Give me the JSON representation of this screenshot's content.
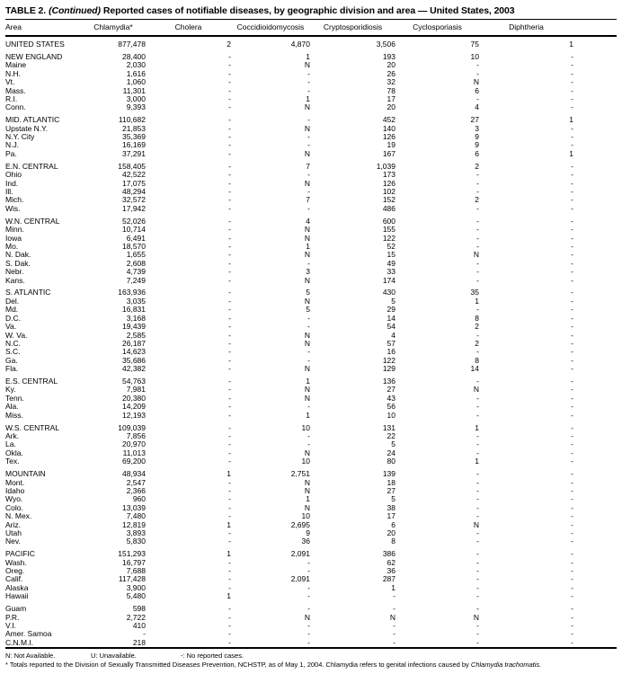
{
  "title": {
    "prefix": "TABLE 2.",
    "continued": "(Continued)",
    "rest": "Reported cases of notifiable diseases, by geographic division and area — United States, 2003"
  },
  "columns": [
    "Area",
    "Chlamydia*",
    "Cholera",
    "Coccidioidomycosis",
    "Cryptosporidiosis",
    "Cyclosporiasis",
    "Diphtheria"
  ],
  "sections": [
    {
      "name": "united-states",
      "rows": [
        {
          "area": "UNITED STATES",
          "values": [
            "877,478",
            "2",
            "4,870",
            "3,506",
            "75",
            "1"
          ]
        }
      ]
    },
    {
      "name": "new-england",
      "rows": [
        {
          "area": "NEW ENGLAND",
          "values": [
            "28,400",
            "-",
            "1",
            "193",
            "10",
            "-"
          ]
        },
        {
          "area": "Maine",
          "values": [
            "2,030",
            "-",
            "N",
            "20",
            "-",
            "-"
          ]
        },
        {
          "area": "N.H.",
          "values": [
            "1,616",
            "-",
            "-",
            "26",
            "-",
            "-"
          ]
        },
        {
          "area": "Vt.",
          "values": [
            "1,060",
            "-",
            "-",
            "32",
            "N",
            "-"
          ]
        },
        {
          "area": "Mass.",
          "values": [
            "11,301",
            "-",
            "-",
            "78",
            "6",
            "-"
          ]
        },
        {
          "area": "R.I.",
          "values": [
            "3,000",
            "-",
            "1",
            "17",
            "-",
            "-"
          ]
        },
        {
          "area": "Conn.",
          "values": [
            "9,393",
            "-",
            "N",
            "20",
            "4",
            "-"
          ]
        }
      ]
    },
    {
      "name": "mid-atlantic",
      "rows": [
        {
          "area": "MID. ATLANTIC",
          "values": [
            "110,682",
            "-",
            "-",
            "452",
            "27",
            "1"
          ]
        },
        {
          "area": "Upstate N.Y.",
          "values": [
            "21,853",
            "-",
            "N",
            "140",
            "3",
            "-"
          ]
        },
        {
          "area": "N.Y. City",
          "values": [
            "35,369",
            "-",
            "-",
            "126",
            "9",
            "-"
          ]
        },
        {
          "area": "N.J.",
          "values": [
            "16,169",
            "-",
            "-",
            "19",
            "9",
            "-"
          ]
        },
        {
          "area": "Pa.",
          "values": [
            "37,291",
            "-",
            "N",
            "167",
            "6",
            "1"
          ]
        }
      ]
    },
    {
      "name": "en-central",
      "rows": [
        {
          "area": "E.N. CENTRAL",
          "values": [
            "158,405",
            "-",
            "7",
            "1,039",
            "2",
            "-"
          ]
        },
        {
          "area": "Ohio",
          "values": [
            "42,522",
            "-",
            "-",
            "173",
            "-",
            "-"
          ]
        },
        {
          "area": "Ind.",
          "values": [
            "17,075",
            "-",
            "N",
            "126",
            "-",
            "-"
          ]
        },
        {
          "area": "Ill.",
          "values": [
            "48,294",
            "-",
            "-",
            "102",
            "-",
            "-"
          ]
        },
        {
          "area": "Mich.",
          "values": [
            "32,572",
            "-",
            "7",
            "152",
            "2",
            "-"
          ]
        },
        {
          "area": "Wis.",
          "values": [
            "17,942",
            "-",
            "-",
            "486",
            "-",
            "-"
          ]
        }
      ]
    },
    {
      "name": "wn-central",
      "rows": [
        {
          "area": "W.N. CENTRAL",
          "values": [
            "52,026",
            "-",
            "4",
            "600",
            "-",
            "-"
          ]
        },
        {
          "area": "Minn.",
          "values": [
            "10,714",
            "-",
            "N",
            "155",
            "-",
            "-"
          ]
        },
        {
          "area": "Iowa",
          "values": [
            "6,491",
            "-",
            "N",
            "122",
            "-",
            "-"
          ]
        },
        {
          "area": "Mo.",
          "values": [
            "18,570",
            "-",
            "1",
            "52",
            "-",
            "-"
          ]
        },
        {
          "area": "N. Dak.",
          "values": [
            "1,655",
            "-",
            "N",
            "15",
            "N",
            "-"
          ]
        },
        {
          "area": "S. Dak.",
          "values": [
            "2,608",
            "-",
            "-",
            "49",
            "-",
            "-"
          ]
        },
        {
          "area": "Nebr.",
          "values": [
            "4,739",
            "-",
            "3",
            "33",
            "-",
            "-"
          ]
        },
        {
          "area": "Kans.",
          "values": [
            "7,249",
            "-",
            "N",
            "174",
            "-",
            "-"
          ]
        }
      ]
    },
    {
      "name": "s-atlantic",
      "rows": [
        {
          "area": "S. ATLANTIC",
          "values": [
            "163,936",
            "-",
            "5",
            "430",
            "35",
            "-"
          ]
        },
        {
          "area": "Del.",
          "values": [
            "3,035",
            "-",
            "N",
            "5",
            "1",
            "-"
          ]
        },
        {
          "area": "Md.",
          "values": [
            "16,831",
            "-",
            "5",
            "29",
            "-",
            "-"
          ]
        },
        {
          "area": "D.C.",
          "values": [
            "3,168",
            "-",
            "-",
            "14",
            "8",
            "-"
          ]
        },
        {
          "area": "Va.",
          "values": [
            "19,439",
            "-",
            "-",
            "54",
            "2",
            "-"
          ]
        },
        {
          "area": "W. Va.",
          "values": [
            "2,585",
            "-",
            "N",
            "4",
            "-",
            "-"
          ]
        },
        {
          "area": "N.C.",
          "values": [
            "26,187",
            "-",
            "N",
            "57",
            "2",
            "-"
          ]
        },
        {
          "area": "S.C.",
          "values": [
            "14,623",
            "-",
            "-",
            "16",
            "-",
            "-"
          ]
        },
        {
          "area": "Ga.",
          "values": [
            "35,686",
            "-",
            "-",
            "122",
            "8",
            "-"
          ]
        },
        {
          "area": "Fla.",
          "values": [
            "42,382",
            "-",
            "N",
            "129",
            "14",
            "-"
          ]
        }
      ]
    },
    {
      "name": "es-central",
      "rows": [
        {
          "area": "E.S. CENTRAL",
          "values": [
            "54,763",
            "-",
            "1",
            "136",
            "-",
            "-"
          ]
        },
        {
          "area": "Ky.",
          "values": [
            "7,981",
            "-",
            "N",
            "27",
            "N",
            "-"
          ]
        },
        {
          "area": "Tenn.",
          "values": [
            "20,380",
            "-",
            "N",
            "43",
            "-",
            "-"
          ]
        },
        {
          "area": "Ala.",
          "values": [
            "14,209",
            "-",
            "-",
            "56",
            "-",
            "-"
          ]
        },
        {
          "area": "Miss.",
          "values": [
            "12,193",
            "-",
            "1",
            "10",
            "-",
            "-"
          ]
        }
      ]
    },
    {
      "name": "ws-central",
      "rows": [
        {
          "area": "W.S. CENTRAL",
          "values": [
            "109,039",
            "-",
            "10",
            "131",
            "1",
            "-"
          ]
        },
        {
          "area": "Ark.",
          "values": [
            "7,856",
            "-",
            "-",
            "22",
            "-",
            "-"
          ]
        },
        {
          "area": "La.",
          "values": [
            "20,970",
            "-",
            "-",
            "5",
            "-",
            "-"
          ]
        },
        {
          "area": "Okla.",
          "values": [
            "11,013",
            "-",
            "N",
            "24",
            "-",
            "-"
          ]
        },
        {
          "area": "Tex.",
          "values": [
            "69,200",
            "-",
            "10",
            "80",
            "1",
            "-"
          ]
        }
      ]
    },
    {
      "name": "mountain",
      "rows": [
        {
          "area": "MOUNTAIN",
          "values": [
            "48,934",
            "1",
            "2,751",
            "139",
            "-",
            "-"
          ]
        },
        {
          "area": "Mont.",
          "values": [
            "2,547",
            "-",
            "N",
            "18",
            "-",
            "-"
          ]
        },
        {
          "area": "Idaho",
          "values": [
            "2,366",
            "-",
            "N",
            "27",
            "-",
            "-"
          ]
        },
        {
          "area": "Wyo.",
          "values": [
            "960",
            "-",
            "1",
            "5",
            "-",
            "-"
          ]
        },
        {
          "area": "Colo.",
          "values": [
            "13,039",
            "-",
            "N",
            "38",
            "-",
            "-"
          ]
        },
        {
          "area": "N. Mex.",
          "values": [
            "7,480",
            "-",
            "10",
            "17",
            "-",
            "-"
          ]
        },
        {
          "area": "Ariz.",
          "values": [
            "12,819",
            "1",
            "2,695",
            "6",
            "N",
            "-"
          ]
        },
        {
          "area": "Utah",
          "values": [
            "3,893",
            "-",
            "9",
            "20",
            "-",
            "-"
          ]
        },
        {
          "area": "Nev.",
          "values": [
            "5,830",
            "-",
            "36",
            "8",
            "-",
            "-"
          ]
        }
      ]
    },
    {
      "name": "pacific",
      "rows": [
        {
          "area": "PACIFIC",
          "values": [
            "151,293",
            "1",
            "2,091",
            "386",
            "-",
            "-"
          ]
        },
        {
          "area": "Wash.",
          "values": [
            "16,797",
            "-",
            "-",
            "62",
            "-",
            "-"
          ]
        },
        {
          "area": "Oreg.",
          "values": [
            "7,688",
            "-",
            "-",
            "36",
            "-",
            "-"
          ]
        },
        {
          "area": "Calif.",
          "values": [
            "117,428",
            "-",
            "2,091",
            "287",
            "-",
            "-"
          ]
        },
        {
          "area": "Alaska",
          "values": [
            "3,900",
            "-",
            "-",
            "1",
            "-",
            "-"
          ]
        },
        {
          "area": "Hawaii",
          "values": [
            "5,480",
            "1",
            "-",
            "-",
            "-",
            "-"
          ]
        }
      ]
    },
    {
      "name": "territories",
      "rows": [
        {
          "area": "Guam",
          "values": [
            "598",
            "-",
            "-",
            "-",
            "-",
            "-"
          ]
        },
        {
          "area": "P.R.",
          "values": [
            "2,722",
            "-",
            "N",
            "N",
            "N",
            "-"
          ]
        },
        {
          "area": "V.I.",
          "values": [
            "410",
            "-",
            "-",
            "-",
            "-",
            "-"
          ]
        },
        {
          "area": "Amer. Samoa",
          "values": [
            "-",
            "-",
            "-",
            "-",
            "-",
            "-"
          ]
        },
        {
          "area": "C.N.M.I.",
          "values": [
            "218",
            "-",
            "-",
            "-",
            "-",
            "-"
          ]
        }
      ]
    }
  ],
  "footnotes": {
    "n": "N: Not Available.",
    "u": "U: Unavailable.",
    "dash": "-: No reported cases.",
    "asterisk_text": "* Totals reported to the Division of Sexually Transmitted Diseases Prevention, NCHSTP, as of May 1, 2004. Chlamydia refers to genital infections caused by ",
    "asterisk_italic": "Chlamydia trachomatis."
  }
}
